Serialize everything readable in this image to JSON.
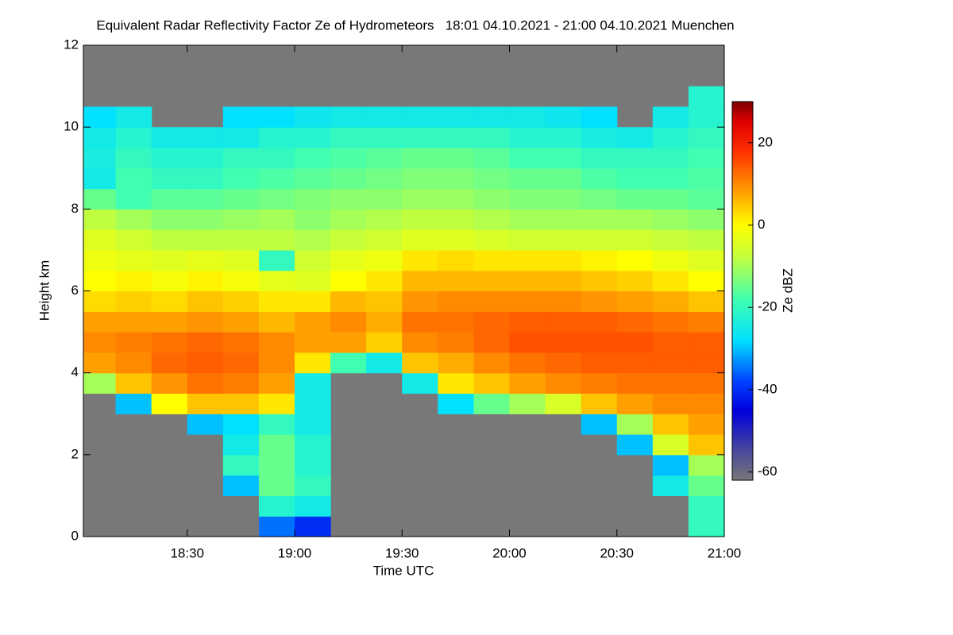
{
  "chart_data": {
    "type": "heatmap",
    "title": "Equivalent Radar Reflectivity Factor Ze of Hydrometeors   18:01 04.10.2021 - 21:00 04.10.2021 Muenchen",
    "x_label": "Time UTC",
    "y_label": "Height km",
    "colorbar_label": "Ze dBZ",
    "x": [
      1085,
      1095,
      1105,
      1115,
      1125,
      1135,
      1145,
      1155,
      1165,
      1175,
      1185,
      1195,
      1205,
      1215,
      1225,
      1235,
      1245,
      1255
    ],
    "y": [
      0.25,
      0.75,
      1.25,
      1.75,
      2.25,
      2.75,
      3.25,
      3.75,
      4.25,
      4.75,
      5.25,
      5.75,
      6.25,
      6.75,
      7.25,
      7.75,
      8.25,
      8.75,
      9.25,
      9.75,
      10.25,
      10.75,
      11.25,
      11.75
    ],
    "values": [
      [
        null,
        null,
        null,
        null,
        null,
        -35,
        -40,
        null,
        null,
        null,
        null,
        null,
        null,
        null,
        null,
        null,
        null,
        -20
      ],
      [
        null,
        null,
        null,
        null,
        null,
        -22,
        -25,
        null,
        null,
        null,
        null,
        null,
        null,
        null,
        null,
        null,
        null,
        -20
      ],
      [
        null,
        null,
        null,
        null,
        -30,
        -15,
        -20,
        null,
        null,
        null,
        null,
        null,
        null,
        null,
        null,
        null,
        -25,
        -15
      ],
      [
        null,
        null,
        null,
        null,
        -20,
        -15,
        -22,
        null,
        null,
        null,
        null,
        null,
        null,
        null,
        null,
        null,
        -30,
        -10
      ],
      [
        null,
        null,
        null,
        null,
        -25,
        -15,
        -22,
        null,
        null,
        null,
        null,
        null,
        null,
        null,
        null,
        -30,
        -5,
        5
      ],
      [
        null,
        null,
        null,
        -30,
        -28,
        -20,
        -25,
        null,
        null,
        null,
        null,
        null,
        null,
        null,
        -30,
        -10,
        5,
        8
      ],
      [
        null,
        -30,
        0,
        5,
        5,
        2,
        -25,
        null,
        null,
        null,
        -28,
        -15,
        -10,
        -5,
        5,
        8,
        10,
        10
      ],
      [
        -10,
        5,
        9,
        12,
        11,
        8,
        -25,
        null,
        null,
        -25,
        2,
        5,
        8,
        10,
        11,
        12,
        12,
        12
      ],
      [
        8,
        10,
        13,
        14,
        13,
        10,
        2,
        -18,
        -25,
        5,
        7,
        10,
        12,
        13,
        14,
        14,
        14,
        14
      ],
      [
        10,
        11,
        12,
        13,
        12,
        10,
        8,
        8,
        4,
        10,
        11,
        13,
        15,
        15,
        15,
        15,
        14,
        14
      ],
      [
        8,
        8,
        8,
        9,
        8,
        6,
        8,
        10,
        7,
        12,
        12,
        13,
        14,
        14,
        14,
        13,
        12,
        11
      ],
      [
        3,
        4,
        3,
        5,
        4,
        2,
        2,
        6,
        5,
        9,
        10,
        10,
        10,
        10,
        9,
        8,
        7,
        5
      ],
      [
        0,
        1,
        -1,
        1,
        -1,
        -3,
        -4,
        0,
        2,
        6,
        6,
        6,
        6,
        6,
        5,
        4,
        2,
        0
      ],
      [
        -2,
        -3,
        -4,
        -3,
        -4,
        -20,
        -6,
        -3,
        -2,
        2,
        3,
        2,
        2,
        2,
        1,
        0,
        -2,
        -4
      ],
      [
        -4,
        -6,
        -8,
        -8,
        -8,
        -8,
        -9,
        -7,
        -6,
        -4,
        -4,
        -5,
        -6,
        -6,
        -6,
        -6,
        -7,
        -8
      ],
      [
        -8,
        -10,
        -12,
        -12,
        -11,
        -10,
        -12,
        -10,
        -9,
        -8,
        -8,
        -9,
        -10,
        -10,
        -10,
        -10,
        -11,
        -12
      ],
      [
        -15,
        -18,
        -16,
        -16,
        -15,
        -14,
        -13,
        -12,
        -12,
        -11,
        -11,
        -12,
        -13,
        -13,
        -14,
        -15,
        -15,
        -16
      ],
      [
        -25,
        -18,
        -20,
        -20,
        -18,
        -17,
        -16,
        -15,
        -14,
        -13,
        -13,
        -14,
        -15,
        -15,
        -17,
        -18,
        -18,
        -17
      ],
      [
        -24,
        -20,
        -22,
        -22,
        -20,
        -20,
        -18,
        -17,
        -16,
        -15,
        -15,
        -16,
        -18,
        -18,
        -20,
        -20,
        -20,
        -18
      ],
      [
        -25,
        -22,
        -25,
        -25,
        -25,
        -22,
        -22,
        -20,
        -20,
        -20,
        -20,
        -20,
        -22,
        -22,
        -24,
        -25,
        -22,
        -20
      ],
      [
        -28,
        -25,
        null,
        null,
        -28,
        -28,
        -26,
        -25,
        -25,
        -25,
        -25,
        -25,
        -25,
        -26,
        -28,
        null,
        -25,
        -22
      ],
      [
        null,
        null,
        null,
        null,
        null,
        null,
        null,
        null,
        null,
        null,
        null,
        null,
        null,
        null,
        null,
        null,
        null,
        -22
      ],
      [
        null,
        null,
        null,
        null,
        null,
        null,
        null,
        null,
        null,
        null,
        null,
        null,
        null,
        null,
        null,
        null,
        null,
        null
      ],
      [
        null,
        null,
        null,
        null,
        null,
        null,
        null,
        null,
        null,
        null,
        null,
        null,
        null,
        null,
        null,
        null,
        null,
        null
      ]
    ],
    "xlim": [
      1081,
      1260
    ],
    "xticks": [
      {
        "value": 1110,
        "label": "18:30"
      },
      {
        "value": 1140,
        "label": "19:00"
      },
      {
        "value": 1170,
        "label": "19:30"
      },
      {
        "value": 1200,
        "label": "20:00"
      },
      {
        "value": 1230,
        "label": "20:30"
      },
      {
        "value": 1260,
        "label": "21:00"
      }
    ],
    "ylim": [
      0,
      12
    ],
    "yticks": [
      0,
      2,
      4,
      6,
      8,
      10,
      12
    ],
    "zlim": [
      -62,
      30
    ],
    "zticks": [
      -60,
      -40,
      -20,
      0,
      20
    ],
    "missing_color": "#787878",
    "colorscale": [
      [
        -62,
        "#787878"
      ],
      [
        -55,
        "#4a4a9a"
      ],
      [
        -45,
        "#0000dd"
      ],
      [
        -38,
        "#0040ff"
      ],
      [
        -28,
        "#00e0ff"
      ],
      [
        -18,
        "#40ffb0"
      ],
      [
        -8,
        "#c0ff40"
      ],
      [
        0,
        "#ffff00"
      ],
      [
        8,
        "#ffa000"
      ],
      [
        18,
        "#ff3000"
      ],
      [
        25,
        "#e00000"
      ],
      [
        30,
        "#800000"
      ]
    ]
  }
}
